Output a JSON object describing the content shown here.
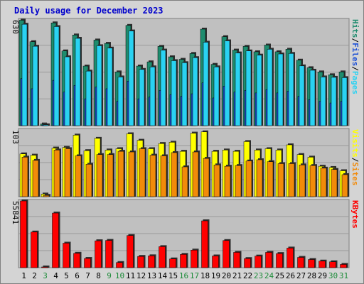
{
  "chart_data": {
    "type": "bar",
    "title": "Daily usage for December 2023",
    "categories": [
      "1",
      "2",
      "3",
      "4",
      "5",
      "6",
      "7",
      "8",
      "9",
      "10",
      "11",
      "12",
      "13",
      "14",
      "15",
      "16",
      "17",
      "18",
      "19",
      "20",
      "21",
      "22",
      "23",
      "24",
      "25",
      "26",
      "27",
      "28",
      "29",
      "30",
      "31"
    ],
    "weekend_days": [
      "3",
      "9",
      "10",
      "16",
      "17",
      "23",
      "24",
      "30",
      "31"
    ],
    "colors": {
      "pages": "#1e8c6e",
      "files": "#1b4fd6",
      "hits": "#2ad2f2",
      "visits": "#ffff00",
      "sites": "#f28b0a",
      "kbytes": "#ff0000",
      "weekday_label": "#000000",
      "weekend_label": "#1e8c3a",
      "panel_bg": "#c0c0c0",
      "frame_bg": "#d4d4d4"
    },
    "panels": [
      {
        "max_label": "630",
        "ylim": [
          0,
          630
        ],
        "series": [
          {
            "name": "Pages",
            "values": [
              628,
              500,
              10,
              612,
              445,
              540,
              355,
              510,
              490,
              320,
              597,
              355,
              380,
              472,
              410,
              395,
              430,
              575,
              365,
              530,
              450,
              472,
              440,
              480,
              440,
              455,
              390,
              345,
              320,
              303,
              320
            ]
          },
          {
            "name": "Files",
            "values": [
              280,
              220,
              5,
              270,
              200,
              240,
              160,
              230,
              220,
              145,
              265,
              160,
              170,
              210,
              185,
              175,
              190,
              255,
              165,
              235,
              200,
              210,
              195,
              215,
              195,
              205,
              175,
              155,
              145,
              135,
              145
            ]
          },
          {
            "name": "Hits",
            "values": [
              604,
              473,
              5,
              590,
              410,
              520,
              325,
              476,
              462,
              290,
              564,
              335,
              350,
              450,
              387,
              375,
              405,
              497,
              350,
              505,
              433,
              445,
              420,
              455,
              427,
              430,
              356,
              330,
              290,
              288,
              286
            ]
          }
        ]
      },
      {
        "max_label": "103",
        "ylim": [
          0,
          103
        ],
        "series": [
          {
            "name": "Visits",
            "values": [
              66,
              64,
              4,
              75,
              76,
              95,
              71,
              90,
              72,
              74,
              97,
              87,
              74,
              82,
              84,
              70,
              98,
              100,
              70,
              72,
              70,
              85,
              72,
              74,
              72,
              80,
              65,
              61,
              47,
              45,
              40
            ]
          },
          {
            "name": "Sites",
            "values": [
              61,
              56,
              2,
              72,
              74,
              63,
              50,
              65,
              65,
              70,
              69,
              74,
              64,
              63,
              68,
              46,
              69,
              59,
              49,
              47,
              48,
              55,
              57,
              54,
              51,
              51,
              49,
              48,
              44,
              42,
              34
            ]
          }
        ]
      },
      {
        "max_label": "55841",
        "ylim": [
          0,
          55841
        ],
        "series": [
          {
            "name": "KBytes",
            "values": [
              55841,
              29800,
              600,
              45700,
              20500,
              12000,
              7700,
              22500,
              22800,
              4300,
              26900,
              9400,
              9900,
              17600,
              7300,
              11100,
              14700,
              39200,
              9800,
              22700,
              12800,
              7600,
              9700,
              12800,
              11800,
              16400,
              8600,
              6800,
              5500,
              4900,
              2700
            ]
          }
        ]
      }
    ],
    "legend": {
      "top": [
        "Pages",
        "/",
        "Files",
        "/",
        "Hits"
      ],
      "middle": [
        "Sites",
        "/",
        "Visits"
      ],
      "bottom": [
        "KBytes"
      ]
    }
  }
}
